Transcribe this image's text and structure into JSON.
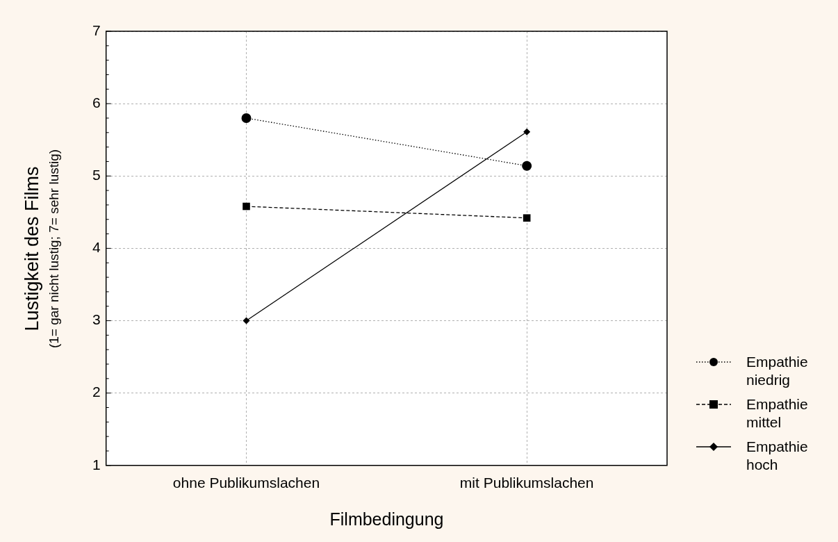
{
  "chart_data": {
    "type": "line",
    "xlabel": "Filmbedingung",
    "ylabel": "Lustigkeit des Films\n(1= gar nicht lustig; 7= sehr lustig)",
    "categories": [
      "ohne Publikumslachen",
      "mit Publikumslachen"
    ],
    "series": [
      {
        "name": "Empathie niedrig",
        "color": "#000000",
        "values": [
          5.8,
          5.14
        ],
        "marker": "circle",
        "line_style": "dotted"
      },
      {
        "name": "Empathie mittel",
        "color": "#000000",
        "values": [
          4.58,
          4.42
        ],
        "marker": "square",
        "line_style": "dashed"
      },
      {
        "name": "Empathie hoch",
        "color": "#000000",
        "values": [
          3.0,
          5.61
        ],
        "marker": "diamond",
        "line_style": "solid"
      }
    ],
    "ylim": [
      1,
      7
    ],
    "yticks": [
      1,
      {
        "value": 1.2,
        "label": null
      },
      {
        "value": 1.4,
        "label": null
      },
      {
        "value": 1.6,
        "label": null
      },
      {
        "value": 1.8,
        "label": null
      },
      2,
      {
        "value": 2.2,
        "label": null
      },
      {
        "value": 2.4,
        "label": null
      },
      {
        "value": 2.6,
        "label": null
      },
      {
        "value": 2.8,
        "label": null
      },
      3,
      {
        "value": 3.2,
        "label": null
      },
      {
        "value": 3.4,
        "label": null
      },
      {
        "value": 3.6,
        "label": null
      },
      {
        "value": 3.8,
        "label": null
      },
      4,
      {
        "value": 4.2,
        "label": null
      },
      {
        "value": 4.4,
        "label": null
      },
      {
        "value": 4.6,
        "label": null
      },
      {
        "value": 4.8,
        "label": null
      },
      5,
      {
        "value": 5.2,
        "label": null
      },
      {
        "value": 5.4,
        "label": null
      },
      {
        "value": 5.6,
        "label": null
      },
      {
        "value": 5.8,
        "label": null
      },
      6,
      {
        "value": 6.2,
        "label": null
      },
      {
        "value": 6.4,
        "label": null
      },
      {
        "value": 6.6,
        "label": null
      },
      {
        "value": 6.8,
        "label": null
      },
      7
    ],
    "grid": true,
    "legend": "right"
  }
}
